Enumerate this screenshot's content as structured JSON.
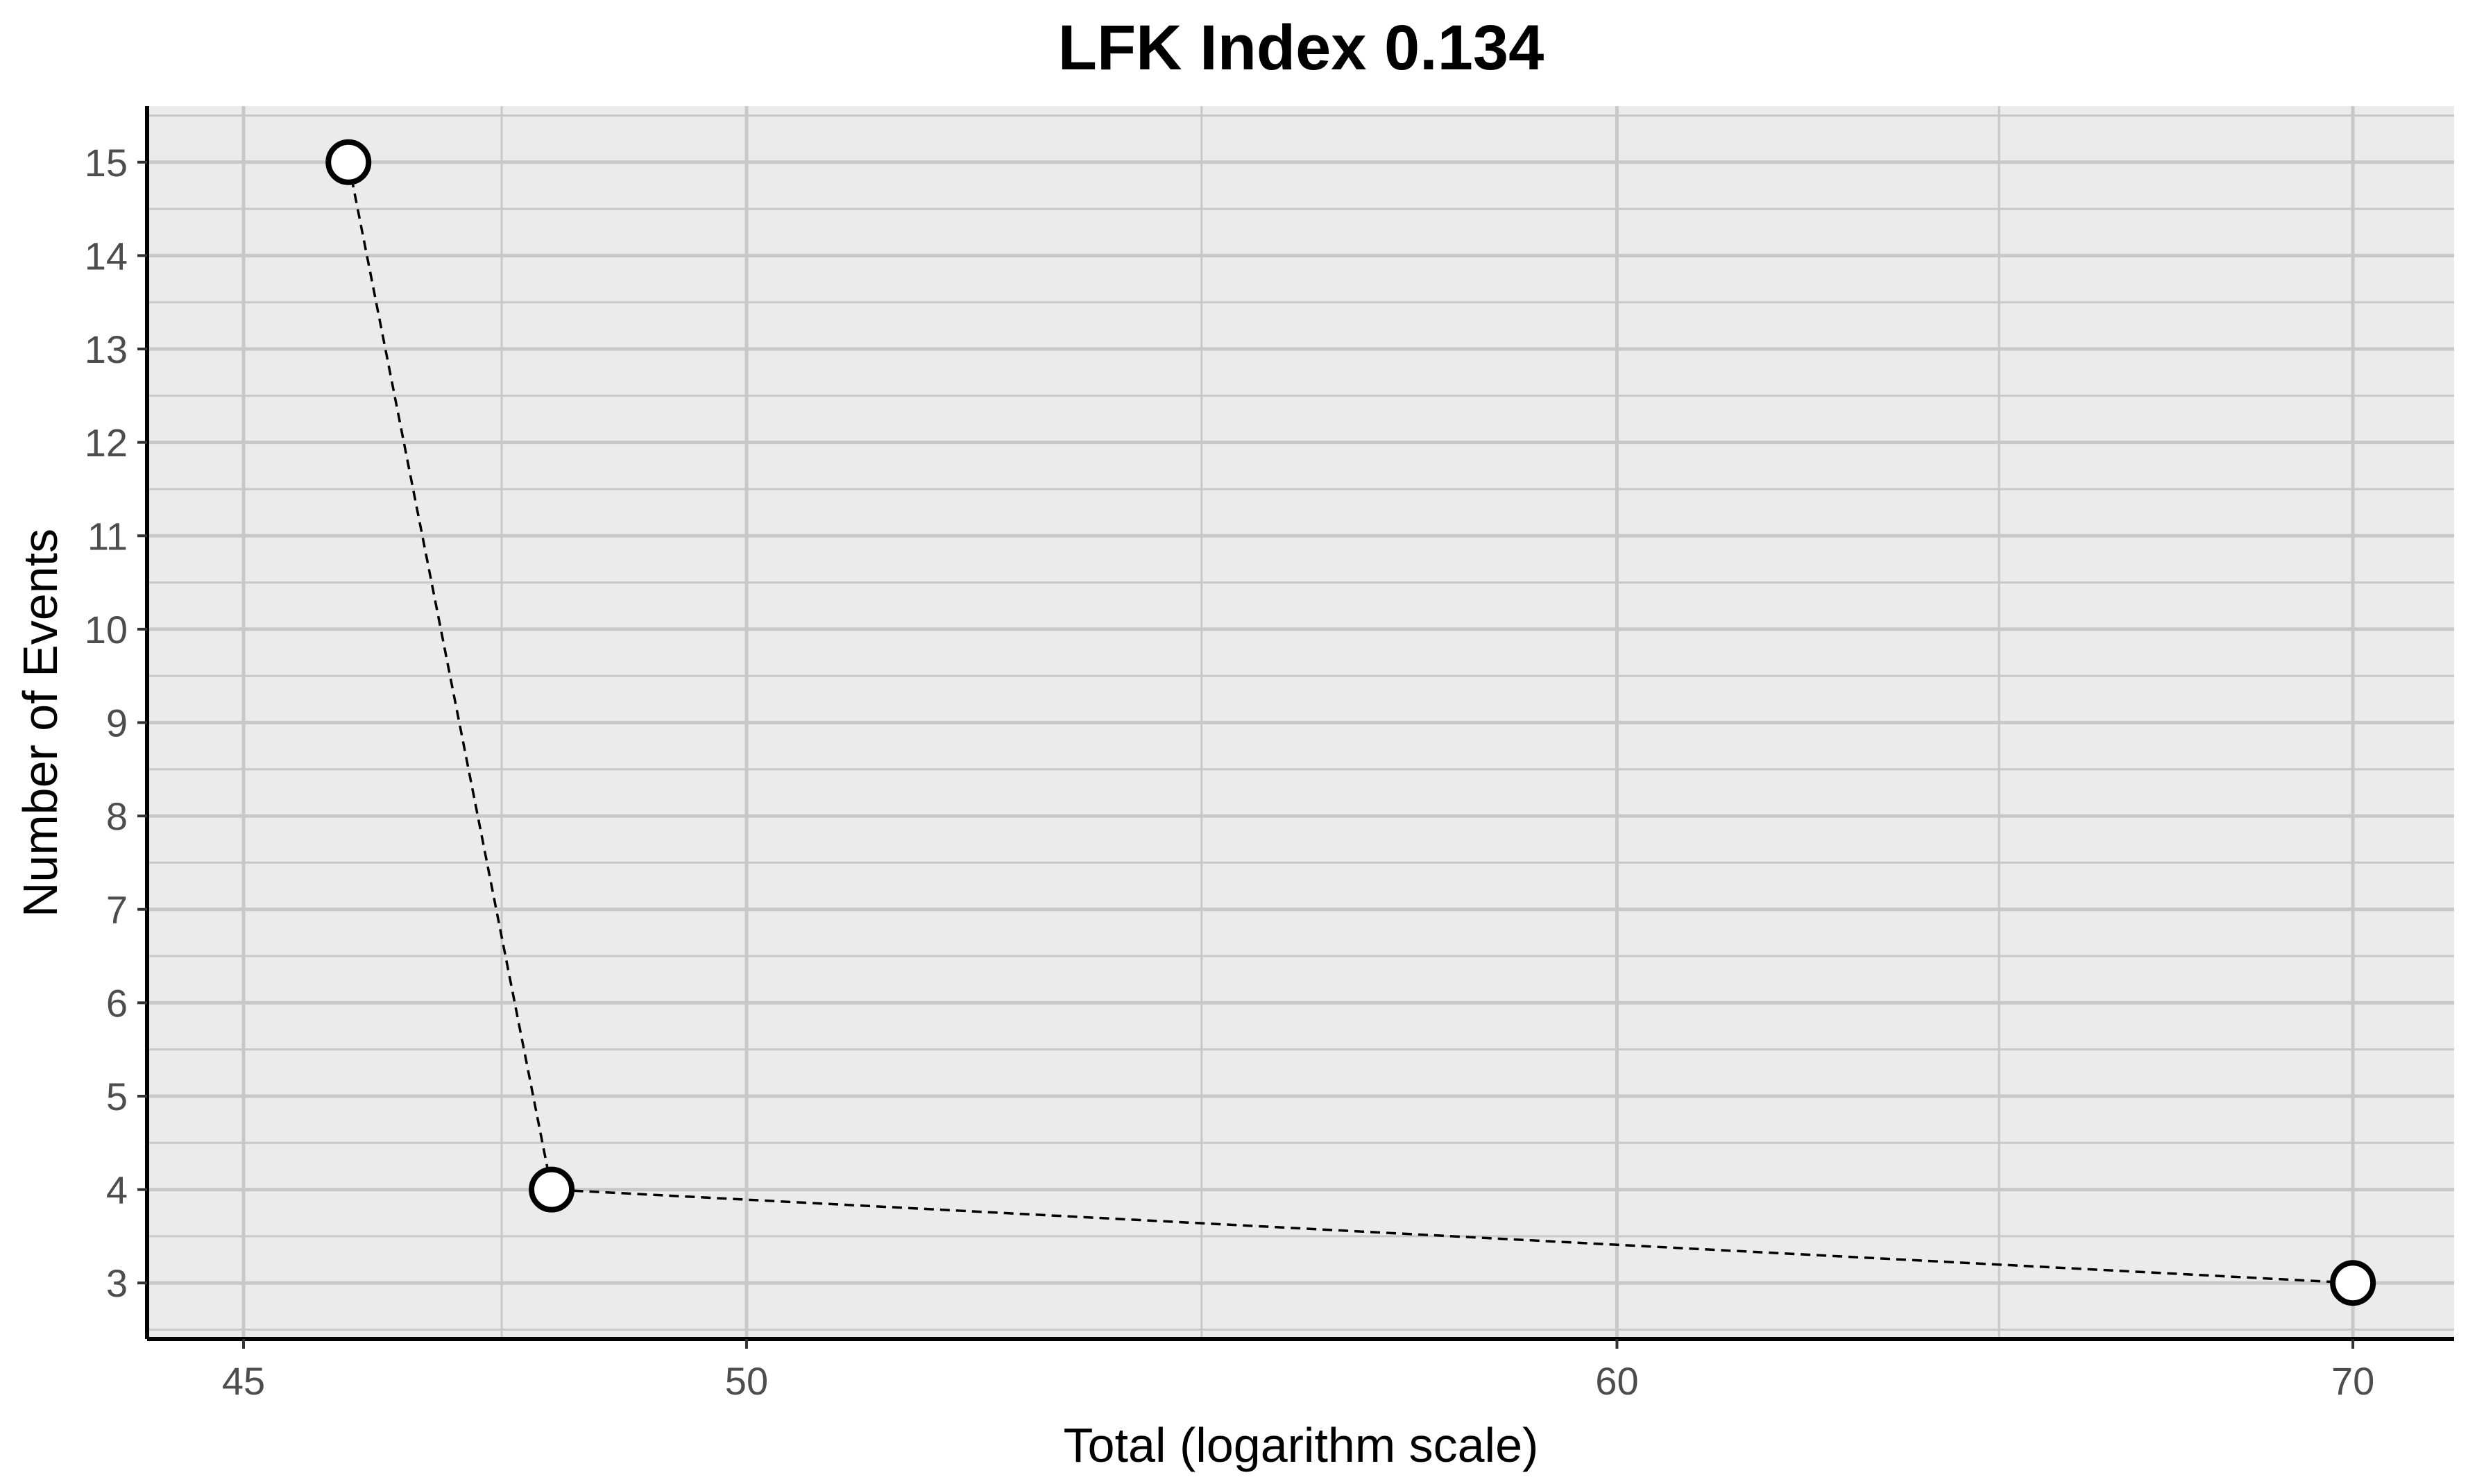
{
  "chart_data": {
    "type": "scatter",
    "title": "LFK Index 0.134",
    "xlabel": "Total (logarithm scale)",
    "ylabel": "Number of Events",
    "x_scale": "log",
    "xlim": [
      44.1,
      71.5
    ],
    "ylim": [
      2.4,
      15.6
    ],
    "x_ticks": [
      45,
      50,
      60,
      70
    ],
    "x_tick_labels": [
      "45",
      "50",
      "60",
      "70"
    ],
    "x_minor_ticks": [
      47.5,
      55,
      65
    ],
    "y_ticks": [
      3,
      4,
      5,
      6,
      7,
      8,
      9,
      10,
      11,
      12,
      13,
      14,
      15
    ],
    "y_tick_labels": [
      "3",
      "4",
      "5",
      "6",
      "7",
      "8",
      "9",
      "10",
      "11",
      "12",
      "13",
      "14",
      "15"
    ],
    "grid": true,
    "legend": "none",
    "connect_points": "dashed",
    "series": [
      {
        "x": [
          46,
          48,
          70
        ],
        "y": [
          15,
          4,
          3
        ]
      }
    ],
    "colors": {
      "panel_background": "#ebebeb",
      "grid": "#c8c8c8",
      "axis_line": "#000000",
      "marker_fill": "#ffffff",
      "marker_stroke": "#000000",
      "connector": "#000000"
    }
  }
}
